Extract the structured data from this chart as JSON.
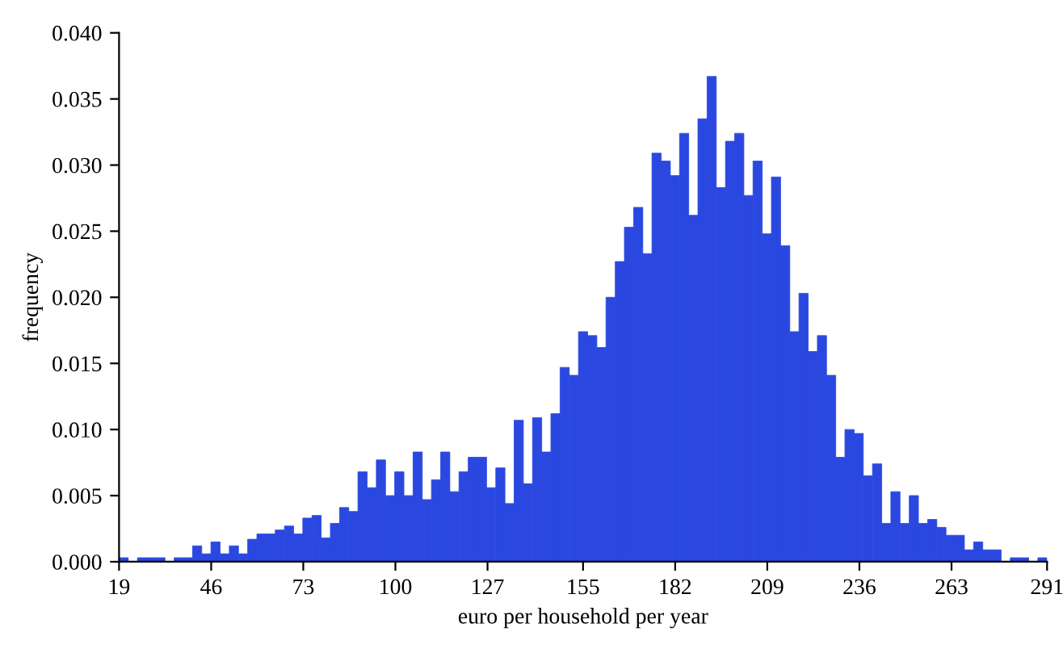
{
  "chart_data": {
    "type": "histogram",
    "xlabel": "euro per household per year",
    "ylabel": "frequency",
    "bins": [
      19.0,
      21.69,
      24.39,
      27.08,
      29.77,
      32.47,
      35.16,
      37.85,
      40.54,
      43.24,
      45.93,
      48.62,
      51.32,
      54.01,
      56.7,
      59.4,
      62.09,
      64.78,
      67.48,
      70.17,
      72.86,
      75.56,
      78.25,
      80.94,
      83.63,
      86.33,
      89.02,
      91.71,
      94.41,
      97.1,
      99.79,
      102.49,
      105.18,
      107.87,
      110.57,
      113.26,
      115.95,
      118.64,
      121.34,
      124.03,
      126.72,
      129.42,
      132.11,
      134.8,
      137.5,
      140.19,
      142.88,
      145.58,
      148.27,
      150.96,
      153.66,
      156.35,
      159.04,
      161.73,
      164.43,
      167.12,
      169.81,
      172.51,
      175.2,
      177.89,
      180.59,
      183.28,
      185.97,
      188.67,
      191.36,
      194.05,
      196.75,
      199.44,
      202.13,
      204.82,
      207.52,
      210.21,
      212.9,
      215.6,
      218.29,
      220.98,
      223.68,
      226.37,
      229.06,
      231.76,
      234.45,
      237.14,
      239.84,
      242.53,
      245.22,
      247.91,
      250.61,
      253.3,
      255.99,
      258.69,
      261.38,
      264.07,
      266.77,
      269.46,
      272.15,
      274.85,
      277.54,
      280.23,
      282.93,
      285.62,
      288.31,
      291.0
    ],
    "values": [
      0.0003,
      0,
      0.0003,
      0.0003,
      0.0003,
      0,
      0.0003,
      0.0003,
      0.0012,
      0.0006,
      0.0015,
      0.0006,
      0.0012,
      0.0006,
      0.0017,
      0.0021,
      0.0021,
      0.0024,
      0.0027,
      0.0021,
      0.0033,
      0.0035,
      0.0018,
      0.0029,
      0.0041,
      0.0038,
      0.0068,
      0.0056,
      0.0077,
      0.005,
      0.0068,
      0.005,
      0.0083,
      0.0047,
      0.0062,
      0.0083,
      0.0053,
      0.0068,
      0.0079,
      0.0079,
      0.0056,
      0.0071,
      0.0044,
      0.0107,
      0.0059,
      0.0109,
      0.0083,
      0.0112,
      0.0147,
      0.0141,
      0.0174,
      0.0171,
      0.0162,
      0.02,
      0.0227,
      0.0253,
      0.0268,
      0.0233,
      0.0309,
      0.0303,
      0.0292,
      0.0324,
      0.0262,
      0.0335,
      0.0367,
      0.0283,
      0.0318,
      0.0324,
      0.0277,
      0.0303,
      0.0248,
      0.0291,
      0.0239,
      0.0174,
      0.0203,
      0.0159,
      0.0171,
      0.0141,
      0.0079,
      0.01,
      0.0097,
      0.0065,
      0.0074,
      0.0029,
      0.0053,
      0.0029,
      0.005,
      0.0029,
      0.0032,
      0.0026,
      0.002,
      0.002,
      0.0009,
      0.0015,
      0.0009,
      0.0009,
      0,
      0.0003,
      0.0003,
      0,
      0.0003
    ],
    "color": "#2a48e0",
    "xlim": [
      19,
      291
    ],
    "xticks": [
      19,
      46,
      73,
      100,
      127,
      155,
      182,
      209,
      236,
      263,
      291
    ],
    "ylim": [
      0,
      0.04
    ],
    "yticks": [
      {
        "value": 0,
        "label": "0.000"
      },
      {
        "value": 0.005,
        "label": "0.005"
      },
      {
        "value": 0.01,
        "label": "0.010"
      },
      {
        "value": 0.015,
        "label": "0.015"
      },
      {
        "value": 0.02,
        "label": "0.020"
      },
      {
        "value": 0.025,
        "label": "0.025"
      },
      {
        "value": 0.03,
        "label": "0.030"
      },
      {
        "value": 0.035,
        "label": "0.035"
      },
      {
        "value": 0.04,
        "label": "0.040"
      }
    ],
    "grid": false
  }
}
